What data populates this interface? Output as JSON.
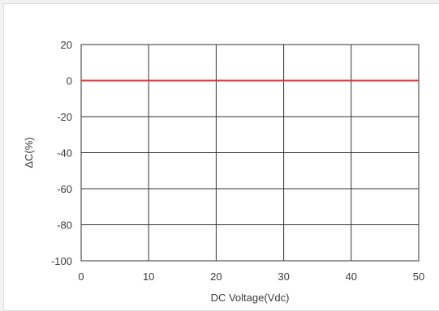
{
  "chart_data": {
    "type": "line",
    "xlabel": "DC Voltage(Vdc)",
    "ylabel": "ΔC(%)",
    "xlim": [
      0,
      50
    ],
    "ylim": [
      -100,
      20
    ],
    "x_ticks": [
      0,
      10,
      20,
      30,
      40,
      50
    ],
    "y_ticks": [
      20,
      0,
      -20,
      -40,
      -60,
      -80,
      -100
    ],
    "grid": true,
    "series": [
      {
        "color": "#e0353a",
        "x": [
          0,
          10,
          20,
          30,
          40,
          50
        ],
        "y": [
          0,
          0,
          0,
          0,
          0,
          0
        ]
      }
    ]
  }
}
